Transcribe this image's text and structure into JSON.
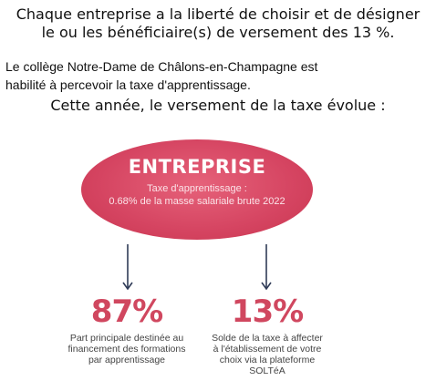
{
  "intro": {
    "line1": "Chaque entreprise a la liberté de choisir et de désigner",
    "line2": "le ou les bénéficiaire(s) de versement des 13 %."
  },
  "college": {
    "line1": "Le collège Notre-Dame de Châlons-en-Champagne est",
    "line2": "habilité à percevoir la taxe d'apprentissage."
  },
  "evolution": {
    "text": "Cette année, le versement de la taxe évolue :"
  },
  "diagram": {
    "entreprise": {
      "title": "ENTREPRISE",
      "subtitle_line1": "Taxe d'apprentissage :",
      "subtitle_line2": "0.68% de la masse salariale brute 2022"
    },
    "left": {
      "percent": "87%",
      "line1": "Part principale destinée au",
      "line2": "financement des formations",
      "line3": "par apprentissage"
    },
    "right": {
      "percent": "13%",
      "line1": "Solde de la taxe à affecter",
      "line2": "à l'établissement de votre",
      "line3": "choix via la plateforme",
      "line4": "SOLTéA"
    },
    "colors": {
      "accent": "#d0475f",
      "ellipse": "#d54461",
      "arrow": "#2f3b57"
    }
  }
}
